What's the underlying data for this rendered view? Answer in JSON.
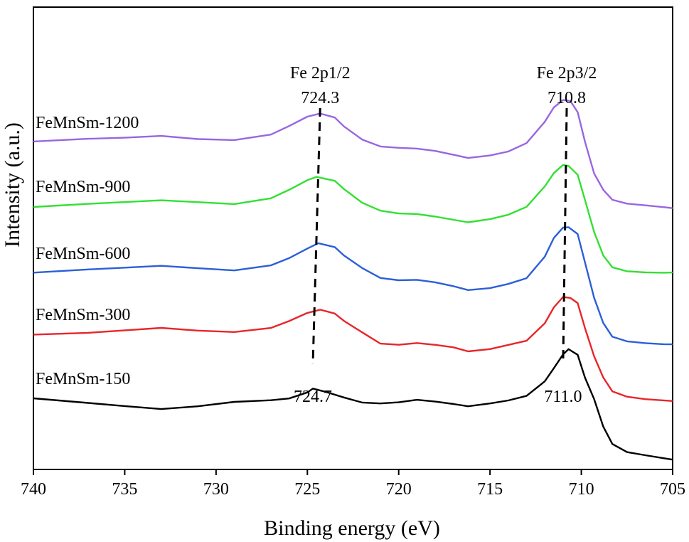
{
  "chart_data": {
    "type": "line",
    "title": "",
    "xlabel": "Binding energy (eV)",
    "ylabel": "Intensity (a.u.)",
    "xlim": [
      740,
      705
    ],
    "x_reversed": true,
    "xticks": [
      740,
      735,
      730,
      725,
      720,
      715,
      710,
      705
    ],
    "y_ticks_visible": false,
    "grid": false,
    "legend": "inline-left",
    "series": [
      {
        "name": "FeMnSm-150",
        "color": "#000000",
        "x": [
          740,
          737,
          735,
          733,
          731,
          729,
          727,
          726,
          725,
          724.7,
          724,
          723,
          722,
          721,
          720,
          719,
          718,
          717,
          716.2,
          715,
          714,
          713,
          712,
          711.5,
          711,
          710.7,
          710.2,
          709.8,
          709.3,
          708.8,
          708.3,
          707.5,
          706.5,
          705.5,
          705
        ],
        "y": [
          560,
          566,
          570,
          574,
          570,
          564,
          562,
          560,
          552,
          547,
          552,
          560,
          567,
          568,
          566,
          562,
          564,
          567,
          570,
          566,
          562,
          556,
          536,
          518,
          499,
          492,
          500,
          532,
          562,
          600,
          624,
          635,
          639,
          643,
          645
        ]
      },
      {
        "name": "FeMnSm-300",
        "color": "#e8262a",
        "x": [
          740,
          737,
          735,
          733,
          731,
          729,
          727,
          726,
          725,
          724.3,
          723.5,
          723,
          722,
          721,
          720,
          719,
          718,
          717,
          716.2,
          715,
          714,
          713,
          712,
          711.5,
          711,
          710.6,
          710.2,
          709.8,
          709.3,
          708.8,
          708.3,
          707.5,
          706.5,
          705.5,
          705
        ],
        "y": [
          470,
          468,
          465,
          462,
          466,
          468,
          462,
          452,
          440,
          435,
          440,
          450,
          466,
          482,
          484,
          482,
          485,
          489,
          495,
          492,
          486,
          480,
          455,
          432,
          417,
          418,
          425,
          460,
          500,
          530,
          550,
          558,
          562,
          564,
          565
        ]
      },
      {
        "name": "FeMnSm-600",
        "color": "#2b5fd9",
        "x": [
          740,
          737,
          735,
          733,
          731,
          729,
          727,
          726,
          725,
          724.4,
          723.5,
          723,
          722,
          721,
          720,
          719,
          718,
          717,
          716.2,
          715,
          714,
          713,
          712,
          711.5,
          711,
          710.7,
          710.2,
          709.8,
          709.3,
          708.8,
          708.3,
          707.5,
          706.5,
          705.5,
          705
        ],
        "y": [
          384,
          379,
          376,
          373,
          376,
          379,
          372,
          362,
          349,
          342,
          348,
          360,
          378,
          392,
          395,
          394,
          397,
          402,
          407,
          404,
          398,
          390,
          360,
          334,
          320,
          320,
          330,
          370,
          420,
          455,
          474,
          480,
          482,
          483,
          483
        ]
      },
      {
        "name": "FeMnSm-900",
        "color": "#33e033",
        "x": [
          740,
          737,
          735,
          733,
          731,
          729,
          727,
          726,
          725,
          724.5,
          723.5,
          723,
          722,
          721,
          720,
          719,
          718,
          717,
          716.2,
          715,
          714,
          713,
          712,
          711.5,
          711,
          710.7,
          710.2,
          709.8,
          709.3,
          708.8,
          708.3,
          707.5,
          706.5,
          705.5,
          705
        ],
        "y": [
          290,
          286,
          284,
          282,
          285,
          288,
          280,
          268,
          254,
          249,
          254,
          265,
          284,
          295,
          299,
          300,
          304,
          309,
          313,
          309,
          303,
          292,
          263,
          244,
          232,
          233,
          245,
          280,
          325,
          358,
          375,
          381,
          383,
          384,
          384
        ]
      },
      {
        "name": "FeMnSm-1200",
        "color": "#9966e0",
        "x": [
          740,
          737,
          735,
          733,
          731,
          729,
          727,
          726,
          725,
          724.3,
          723.5,
          723,
          722,
          721,
          720,
          719,
          718,
          717,
          716.2,
          715,
          714,
          713,
          712,
          711.5,
          711,
          710.6,
          710.2,
          709.8,
          709.3,
          708.8,
          708.3,
          707.5,
          706.5,
          705.5,
          705
        ],
        "y": [
          200,
          196,
          194,
          191,
          195,
          196,
          188,
          176,
          163,
          159,
          165,
          178,
          197,
          207,
          209,
          210,
          213,
          218,
          222,
          218,
          212,
          200,
          170,
          150,
          140,
          142,
          158,
          200,
          245,
          268,
          282,
          287,
          289,
          291,
          292
        ]
      }
    ],
    "annotations": [
      {
        "text": "Fe 2p1/2",
        "x": 724.3,
        "role": "peak-name"
      },
      {
        "text": "724.3",
        "x": 724.3,
        "role": "peak-top"
      },
      {
        "text": "724.7",
        "x": 724.7,
        "role": "peak-bottom"
      },
      {
        "text": "Fe 2p3/2",
        "x": 710.8,
        "role": "peak-name"
      },
      {
        "text": "710.8",
        "x": 710.8,
        "role": "peak-top"
      },
      {
        "text": "711.0",
        "x": 711.0,
        "role": "peak-bottom"
      }
    ],
    "reference_lines": [
      {
        "style": "dashed",
        "x_top": 724.3,
        "x_bottom": 724.7
      },
      {
        "style": "dashed",
        "x_top": 710.8,
        "x_bottom": 711.0
      }
    ]
  }
}
